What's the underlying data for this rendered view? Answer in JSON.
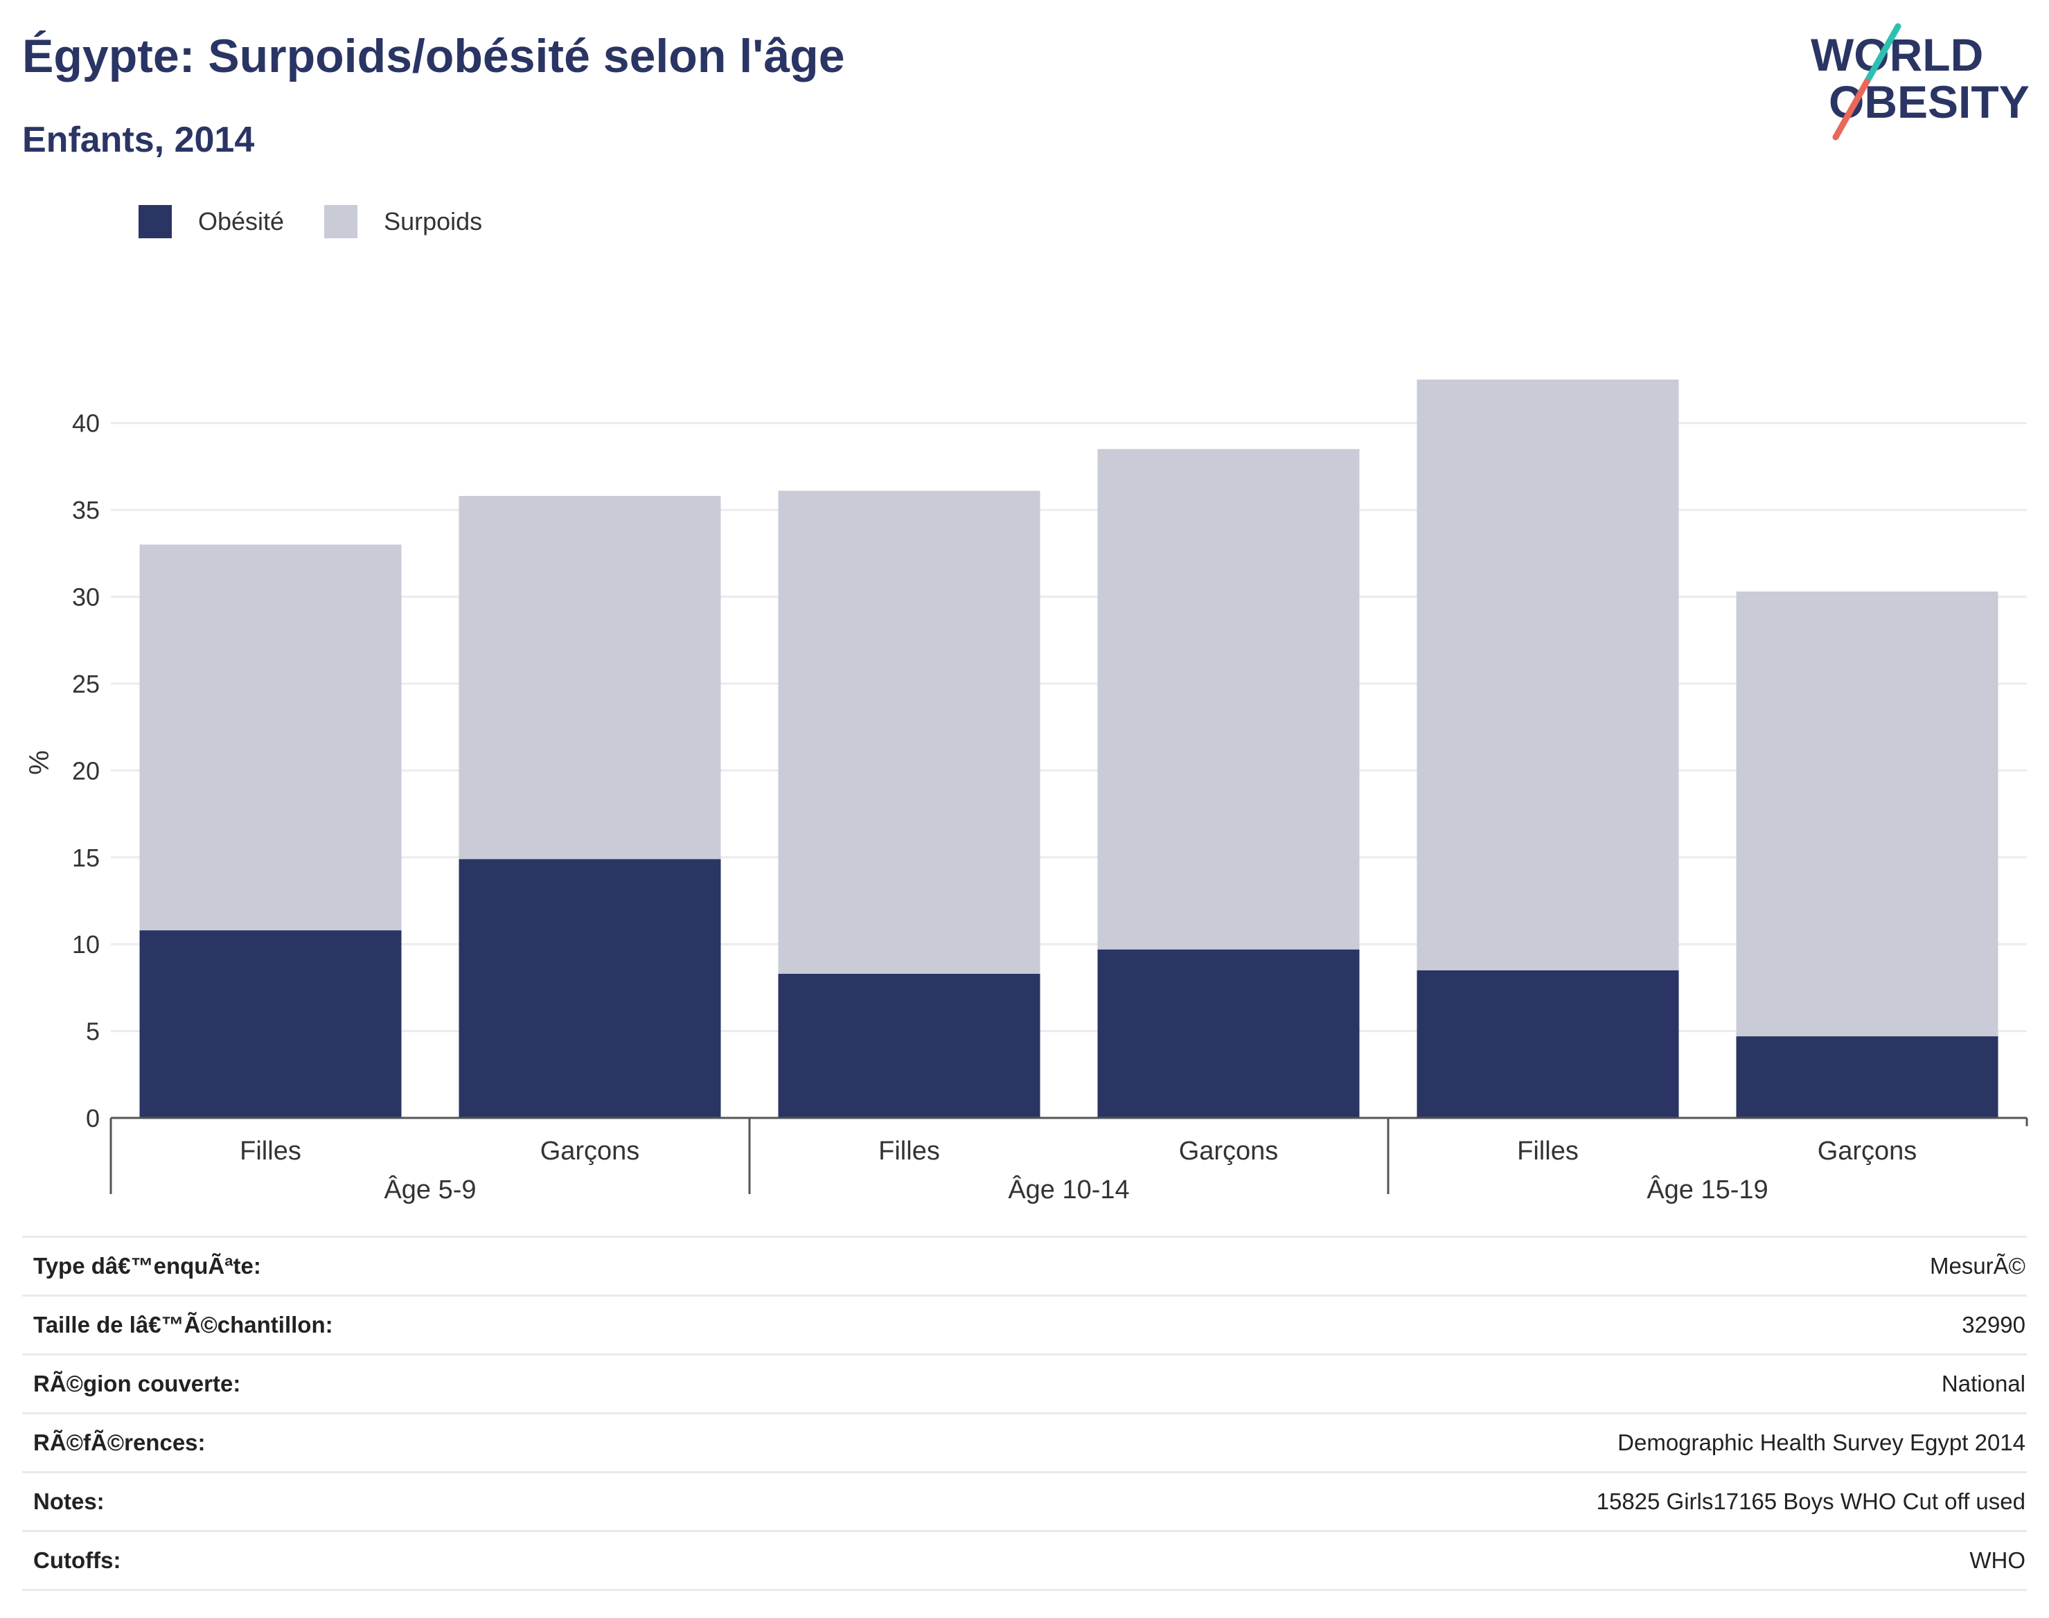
{
  "header": {
    "title": "Égypte: Surpoids/obésité selon l'âge",
    "subtitle": "Enfants, 2014"
  },
  "logo": {
    "line1": "WORLD",
    "line2": "OBESITY",
    "colors": [
      "#2a3564",
      "#2ebfb0",
      "#e8685a"
    ]
  },
  "legend": [
    {
      "label": "Obésité",
      "color": "#2a3564"
    },
    {
      "label": "Surpoids",
      "color": "#c9cbd7"
    }
  ],
  "chart_data": {
    "type": "bar",
    "stacked": true,
    "categories": [
      "Filles",
      "Garçons",
      "Filles",
      "Garçons",
      "Filles",
      "Garçons"
    ],
    "groups": [
      {
        "label": "Âge 5-9",
        "span": 2
      },
      {
        "label": "Âge 10-14",
        "span": 2
      },
      {
        "label": "Âge 15-19",
        "span": 2
      }
    ],
    "series": [
      {
        "name": "Obésité",
        "color": "#2a3564",
        "values": [
          10.8,
          14.9,
          8.3,
          9.7,
          8.5,
          4.7
        ]
      },
      {
        "name": "Surpoids",
        "color": "#c9cbd7",
        "values": [
          22.2,
          20.9,
          27.8,
          28.8,
          34.0,
          25.6
        ]
      }
    ],
    "ylabel": "%",
    "ylim": [
      0,
      42.5
    ],
    "yticks": [
      0,
      5,
      10,
      15,
      20,
      25,
      30,
      35,
      40
    ],
    "grid": true,
    "legend_position": "top-left"
  },
  "info": [
    {
      "key": "Type dâ€™enquÃªte:",
      "value": "MesurÃ©"
    },
    {
      "key": "Taille de lâ€™Ã©chantillon:",
      "value": "32990"
    },
    {
      "key": "RÃ©gion couverte:",
      "value": "National"
    },
    {
      "key": "RÃ©fÃ©rences:",
      "value": "Demographic Health Survey Egypt 2014"
    },
    {
      "key": "Notes:",
      "value": "15825 Girls17165 Boys WHO Cut off used"
    },
    {
      "key": "Cutoffs:",
      "value": "WHO"
    }
  ]
}
